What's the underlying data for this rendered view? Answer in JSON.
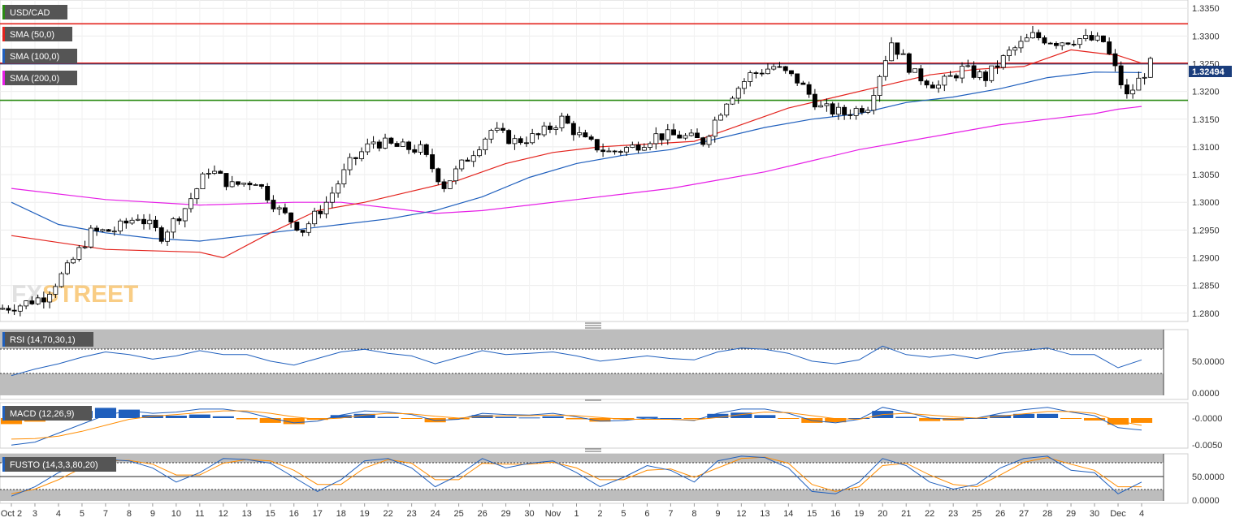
{
  "watermark": {
    "part1": "FX",
    "part2": "STREET"
  },
  "price_panel": {
    "symbol": "USD/CAD",
    "indicators": [
      {
        "label": "SMA (50,0)",
        "color": "#e3231d"
      },
      {
        "label": "SMA (100,0)",
        "color": "#1f5fbd"
      },
      {
        "label": "SMA (200,0)",
        "color": "#e61ee6"
      }
    ],
    "price_ticks": [
      "1.3350",
      "1.3300",
      "1.3250",
      "1.3200",
      "1.3150",
      "1.3100",
      "1.3050",
      "1.3000",
      "1.2950",
      "1.2900",
      "1.2850",
      "1.2800"
    ],
    "last_price_label": "1.32494",
    "horizontal_levels": [
      {
        "price": 1.3322,
        "color": "#e3231d"
      },
      {
        "price": 1.3251,
        "color": "#e3231d"
      },
      {
        "price": 1.3184,
        "color": "#2a8a12"
      }
    ]
  },
  "rsi_panel": {
    "label": "RSI (14,70,30,1)",
    "ticks": [
      "50.0000",
      "0.0000"
    ]
  },
  "macd_panel": {
    "label": "MACD (12,26,9)",
    "ticks": [
      "-0.0000",
      "-0.0050"
    ]
  },
  "fusto_panel": {
    "label": "FUSTO (14,3,3,80,20)",
    "ticks": [
      "50.0000",
      "0.0000"
    ]
  },
  "x_labels": [
    "Oct 2",
    "3",
    "4",
    "5",
    "7",
    "8",
    "9",
    "10",
    "11",
    "12",
    "13",
    "15",
    "16",
    "17",
    "18",
    "19",
    "22",
    "23",
    "24",
    "25",
    "26",
    "29",
    "30",
    "Nov",
    "1",
    "2",
    "5",
    "6",
    "7",
    "8",
    "9",
    "12",
    "13",
    "14",
    "15",
    "16",
    "19",
    "20",
    "21",
    "22",
    "23",
    "25",
    "26",
    "27",
    "28",
    "29",
    "30",
    "Dec",
    "4"
  ],
  "colors": {
    "bull": "#ffffff",
    "bear": "#000000",
    "sma50": "#e3231d",
    "sma100": "#1f5fbd",
    "sma200": "#e61ee6",
    "indicator_blue": "#1f5fbd",
    "indicator_orange": "#ff8c00"
  },
  "chart_data": {
    "type": "candlestick",
    "symbol": "USD/CAD",
    "y_range": [
      1.2785,
      1.3365
    ],
    "period": {
      "start": "Oct 2",
      "end": "Dec 4"
    },
    "daily_close_approx": [
      {
        "x": "Oct 2",
        "close": 1.2815
      },
      {
        "x": "3",
        "close": 1.283
      },
      {
        "x": "4",
        "close": 1.288
      },
      {
        "x": "5",
        "close": 1.2945
      },
      {
        "x": "7",
        "close": 1.295
      },
      {
        "x": "8",
        "close": 1.2975
      },
      {
        "x": "9",
        "close": 1.294
      },
      {
        "x": "10",
        "close": 1.299
      },
      {
        "x": "11",
        "close": 1.306
      },
      {
        "x": "12",
        "close": 1.303
      },
      {
        "x": "13",
        "close": 1.304
      },
      {
        "x": "15",
        "close": 1.2985
      },
      {
        "x": "16",
        "close": 1.295
      },
      {
        "x": "17",
        "close": 1.3
      },
      {
        "x": "18",
        "close": 1.307
      },
      {
        "x": "19",
        "close": 1.311
      },
      {
        "x": "22",
        "close": 1.31
      },
      {
        "x": "23",
        "close": 1.3095
      },
      {
        "x": "24",
        "close": 1.303
      },
      {
        "x": "25",
        "close": 1.308
      },
      {
        "x": "26",
        "close": 1.313
      },
      {
        "x": "29",
        "close": 1.311
      },
      {
        "x": "30",
        "close": 1.312
      },
      {
        "x": "Nov",
        "close": 1.315
      },
      {
        "x": "1",
        "close": 1.311
      },
      {
        "x": "2",
        "close": 1.309
      },
      {
        "x": "5",
        "close": 1.31
      },
      {
        "x": "6",
        "close": 1.312
      },
      {
        "x": "7",
        "close": 1.312
      },
      {
        "x": "8",
        "close": 1.311
      },
      {
        "x": "9",
        "close": 1.3185
      },
      {
        "x": "12",
        "close": 1.323
      },
      {
        "x": "13",
        "close": 1.3245
      },
      {
        "x": "14",
        "close": 1.322
      },
      {
        "x": "15",
        "close": 1.317
      },
      {
        "x": "16",
        "close": 1.316
      },
      {
        "x": "19",
        "close": 1.3175
      },
      {
        "x": "20",
        "close": 1.329
      },
      {
        "x": "21",
        "close": 1.323
      },
      {
        "x": "22",
        "close": 1.321
      },
      {
        "x": "23",
        "close": 1.324
      },
      {
        "x": "25",
        "close": 1.3225
      },
      {
        "x": "26",
        "close": 1.327
      },
      {
        "x": "27",
        "close": 1.33
      },
      {
        "x": "28",
        "close": 1.329
      },
      {
        "x": "29",
        "close": 1.3295
      },
      {
        "x": "30",
        "close": 1.329
      },
      {
        "x": "Dec",
        "close": 1.319
      },
      {
        "x": "4",
        "close": 1.3249
      }
    ],
    "sma50": [
      [
        0,
        1.294
      ],
      [
        4,
        1.2915
      ],
      [
        8,
        1.291
      ],
      [
        9,
        1.29
      ],
      [
        11,
        1.2945
      ],
      [
        13,
        1.2985
      ],
      [
        15,
        1.3
      ],
      [
        17,
        1.302
      ],
      [
        19,
        1.304
      ],
      [
        21,
        1.307
      ],
      [
        23,
        1.309
      ],
      [
        25,
        1.31
      ],
      [
        27,
        1.3105
      ],
      [
        29,
        1.311
      ],
      [
        31,
        1.314
      ],
      [
        33,
        1.317
      ],
      [
        35,
        1.319
      ],
      [
        37,
        1.321
      ],
      [
        39,
        1.323
      ],
      [
        41,
        1.324
      ],
      [
        43,
        1.3245
      ],
      [
        45,
        1.3275
      ],
      [
        46,
        1.327
      ],
      [
        47,
        1.3265
      ],
      [
        48,
        1.3251
      ]
    ],
    "sma100": [
      [
        0,
        1.3
      ],
      [
        2,
        1.296
      ],
      [
        4,
        1.2945
      ],
      [
        6,
        1.2935
      ],
      [
        8,
        1.293
      ],
      [
        10,
        1.294
      ],
      [
        12,
        1.295
      ],
      [
        14,
        1.296
      ],
      [
        16,
        1.297
      ],
      [
        18,
        1.2985
      ],
      [
        20,
        1.301
      ],
      [
        22,
        1.3045
      ],
      [
        24,
        1.307
      ],
      [
        26,
        1.3085
      ],
      [
        28,
        1.3095
      ],
      [
        30,
        1.3115
      ],
      [
        32,
        1.3135
      ],
      [
        34,
        1.315
      ],
      [
        36,
        1.316
      ],
      [
        38,
        1.318
      ],
      [
        40,
        1.319
      ],
      [
        42,
        1.3205
      ],
      [
        44,
        1.3225
      ],
      [
        46,
        1.3235
      ],
      [
        48,
        1.3234
      ]
    ],
    "sma200": [
      [
        0,
        1.3025
      ],
      [
        4,
        1.3005
      ],
      [
        8,
        1.2995
      ],
      [
        12,
        1.3
      ],
      [
        14,
        1.3
      ],
      [
        16,
        1.299
      ],
      [
        18,
        1.298
      ],
      [
        20,
        1.2985
      ],
      [
        22,
        1.2995
      ],
      [
        24,
        1.3005
      ],
      [
        26,
        1.3015
      ],
      [
        28,
        1.3025
      ],
      [
        30,
        1.304
      ],
      [
        32,
        1.3055
      ],
      [
        34,
        1.3075
      ],
      [
        36,
        1.3095
      ],
      [
        38,
        1.311
      ],
      [
        40,
        1.3125
      ],
      [
        42,
        1.314
      ],
      [
        44,
        1.315
      ],
      [
        46,
        1.316
      ],
      [
        47,
        1.3168
      ],
      [
        48,
        1.3173
      ]
    ],
    "rsi_range": [
      0,
      100
    ],
    "rsi_levels": [
      30,
      70
    ],
    "rsi_approx": [
      30,
      40,
      48,
      58,
      66,
      62,
      55,
      60,
      68,
      62,
      62,
      52,
      46,
      56,
      66,
      70,
      64,
      60,
      48,
      58,
      68,
      62,
      64,
      66,
      60,
      52,
      56,
      60,
      56,
      54,
      66,
      72,
      70,
      64,
      52,
      48,
      54,
      75,
      62,
      58,
      62,
      56,
      64,
      68,
      72,
      62,
      62,
      42,
      54
    ],
    "macd_approx": [
      -0.0045,
      -0.004,
      -0.0025,
      -0.001,
      0.0005,
      0.0012,
      0.0008,
      0.001,
      0.0015,
      0.0015,
      0.001,
      0.0,
      -0.0008,
      -0.0005,
      0.0005,
      0.0012,
      0.001,
      0.0006,
      -0.0004,
      -0.0002,
      0.0008,
      0.0006,
      0.0005,
      0.0008,
      0.0002,
      -0.0005,
      -0.0004,
      0.0,
      -0.0002,
      -0.0004,
      0.0008,
      0.0015,
      0.0015,
      0.0008,
      -0.0004,
      -0.0008,
      -0.0002,
      0.0018,
      0.001,
      0.0,
      -0.0002,
      0.0,
      0.0008,
      0.0014,
      0.0018,
      0.001,
      0.0004,
      -0.0016,
      -0.002
    ],
    "macd_signal_approx": [
      -0.0035,
      -0.0034,
      -0.003,
      -0.0022,
      -0.0012,
      -0.0002,
      0.0003,
      0.0006,
      0.0009,
      0.0012,
      0.0012,
      0.0008,
      0.0002,
      -0.0002,
      0.0,
      0.0005,
      0.0008,
      0.0007,
      0.0003,
      0.0,
      0.0003,
      0.0004,
      0.0004,
      0.0005,
      0.0004,
      0.0001,
      -0.0002,
      -0.0002,
      -0.0002,
      -0.0003,
      0.0001,
      0.0006,
      0.001,
      0.0009,
      0.0004,
      -0.0001,
      -0.0002,
      0.0006,
      0.0008,
      0.0005,
      0.0002,
      0.0,
      0.0003,
      0.0007,
      0.0011,
      0.0011,
      0.0008,
      -0.0005,
      -0.0012
    ],
    "fusto_k_approx": [
      10,
      30,
      60,
      80,
      88,
      85,
      70,
      40,
      60,
      90,
      88,
      80,
      50,
      20,
      45,
      85,
      90,
      70,
      30,
      55,
      90,
      70,
      80,
      85,
      60,
      30,
      50,
      75,
      65,
      40,
      85,
      95,
      92,
      70,
      20,
      15,
      40,
      90,
      75,
      40,
      25,
      35,
      70,
      90,
      95,
      65,
      60,
      15,
      40
    ],
    "fusto_d_approx": [
      15,
      25,
      45,
      70,
      85,
      86,
      78,
      55,
      55,
      80,
      88,
      85,
      65,
      35,
      35,
      70,
      88,
      80,
      45,
      45,
      80,
      78,
      78,
      82,
      70,
      45,
      45,
      65,
      68,
      50,
      70,
      90,
      93,
      80,
      35,
      20,
      30,
      75,
      80,
      55,
      35,
      30,
      55,
      82,
      92,
      78,
      65,
      30,
      30
    ]
  }
}
